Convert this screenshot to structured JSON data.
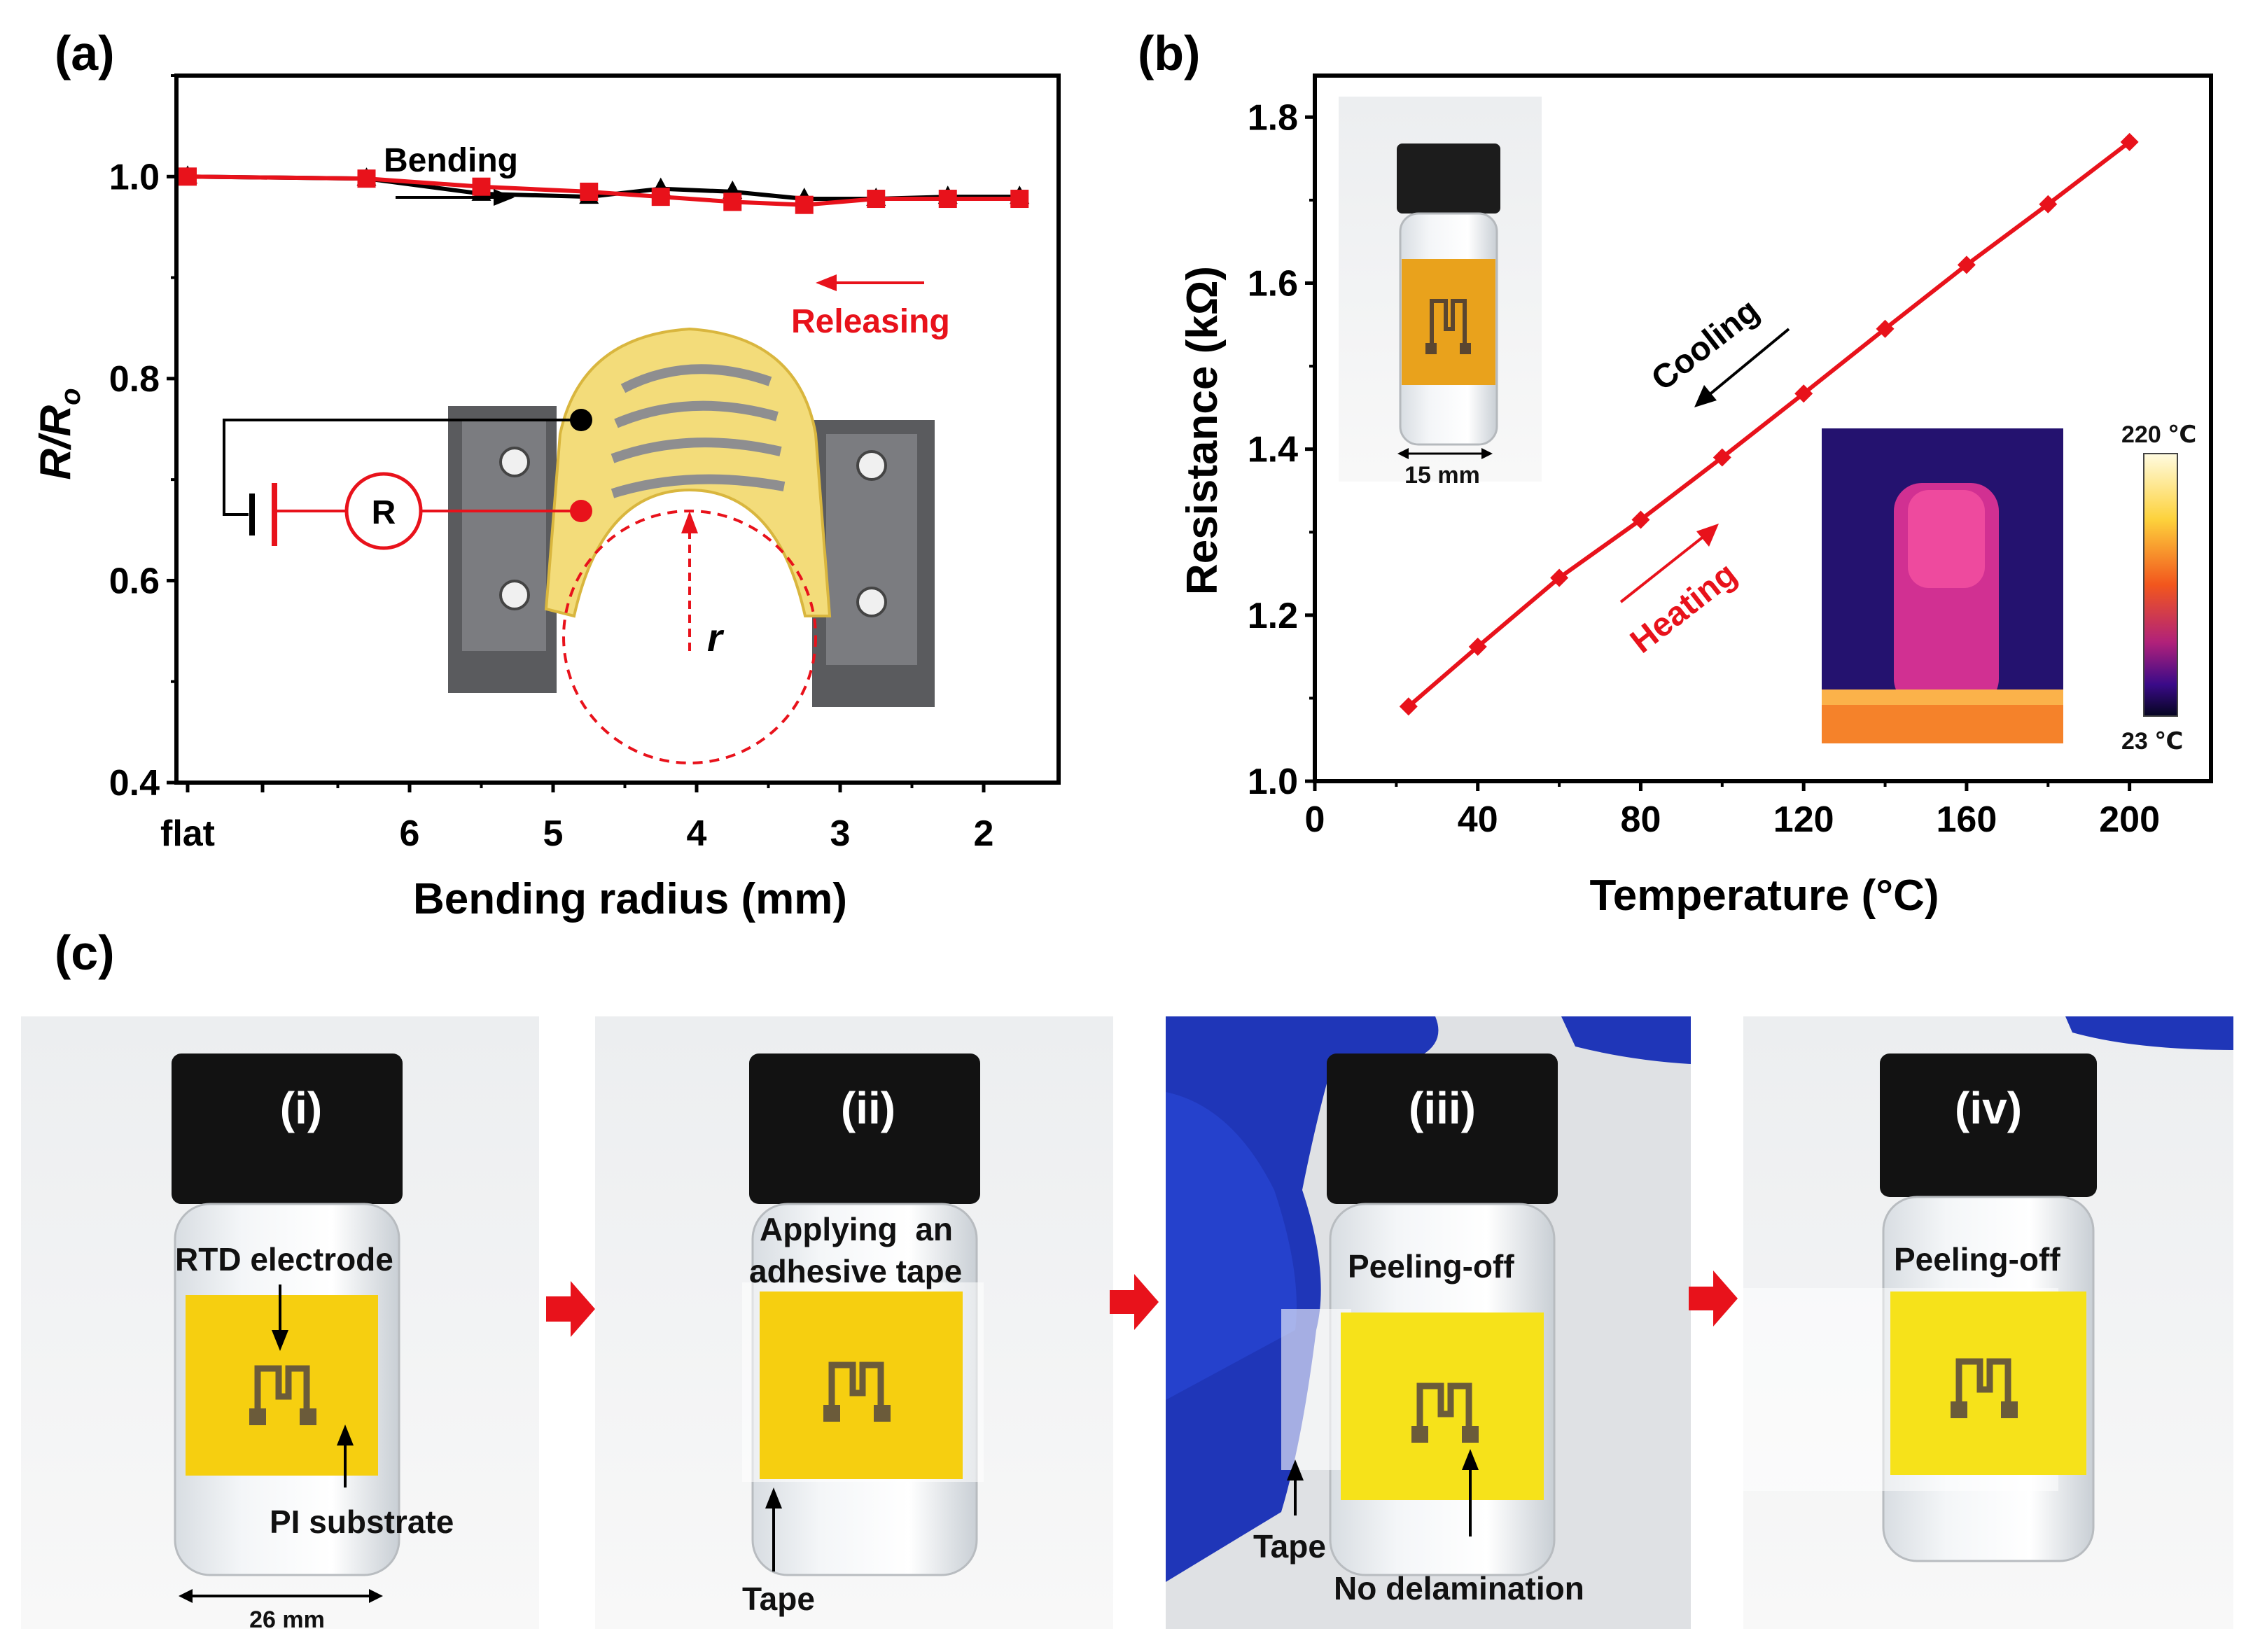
{
  "chart_data": [
    {
      "panel": "(a)",
      "type": "line",
      "xlabel": "Bending radius (mm)",
      "ylabel": "R/Ro",
      "ylim": [
        0.4,
        1.1
      ],
      "y_ticks": [
        "0.4",
        "0.6",
        "0.8",
        "1.0"
      ],
      "x_tick_labels": [
        "flat",
        "6",
        "5",
        "4",
        "3",
        "2"
      ],
      "categories": [
        "flat",
        "6.3",
        "5.5",
        "4.75",
        "4.25",
        "3.75",
        "3.25",
        "2.75",
        "2.25",
        "1.75"
      ],
      "series": [
        {
          "name": "Bending",
          "color": "#000000",
          "marker": "triangle",
          "values": [
            1.0,
            0.998,
            0.983,
            0.98,
            0.988,
            0.985,
            0.978,
            0.978,
            0.98,
            0.98
          ]
        },
        {
          "name": "Releasing",
          "color": "#e8121b",
          "marker": "square",
          "values": [
            1.0,
            0.998,
            0.99,
            0.985,
            0.98,
            0.975,
            0.972,
            0.978,
            0.978,
            0.978
          ]
        }
      ],
      "annotations": {
        "bending": "Bending",
        "releasing": "Releasing"
      },
      "inset": {
        "resistor": "R",
        "radius": "r"
      }
    },
    {
      "panel": "(b)",
      "type": "line",
      "xlabel": "Temperature (°C)",
      "ylabel": "Resistance (kΩ)",
      "xlim": [
        0,
        220
      ],
      "ylim": [
        1.0,
        1.85
      ],
      "x_ticks": [
        "0",
        "40",
        "80",
        "120",
        "160",
        "200"
      ],
      "y_ticks": [
        "1.0",
        "1.2",
        "1.4",
        "1.6",
        "1.8"
      ],
      "x": [
        23,
        40,
        60,
        80,
        100,
        120,
        140,
        160,
        180,
        200
      ],
      "series": [
        {
          "name": "Heating",
          "color": "#e8121b",
          "values": [
            1.09,
            1.162,
            1.245,
            1.315,
            1.39,
            1.467,
            1.545,
            1.622,
            1.695,
            1.77
          ]
        }
      ],
      "annotations": {
        "cooling": "Cooling",
        "heating": "Heating"
      },
      "inset_scale": "15 mm",
      "thermal_colorbar": {
        "max": "220 ℃",
        "min": "23 ℃"
      }
    }
  ],
  "panel_c": {
    "label": "(c)",
    "photos": [
      {
        "label": "(i)",
        "annotations": [
          "RTD electrode",
          "PI substrate",
          "26 mm"
        ]
      },
      {
        "label": "(ii)",
        "annotations": [
          "Applying  an",
          "adhesive tape",
          "Tape"
        ]
      },
      {
        "label": "(iii)",
        "annotations": [
          "Peeling-off",
          "Tape",
          "No delamination"
        ]
      },
      {
        "label": "(iv)",
        "annotations": [
          "Peeling-off"
        ]
      }
    ]
  },
  "colors": {
    "red": "#e8121b",
    "black": "#000000",
    "pi_yellow": "#f4c20d",
    "glove_blue": "#1a2fb0"
  }
}
